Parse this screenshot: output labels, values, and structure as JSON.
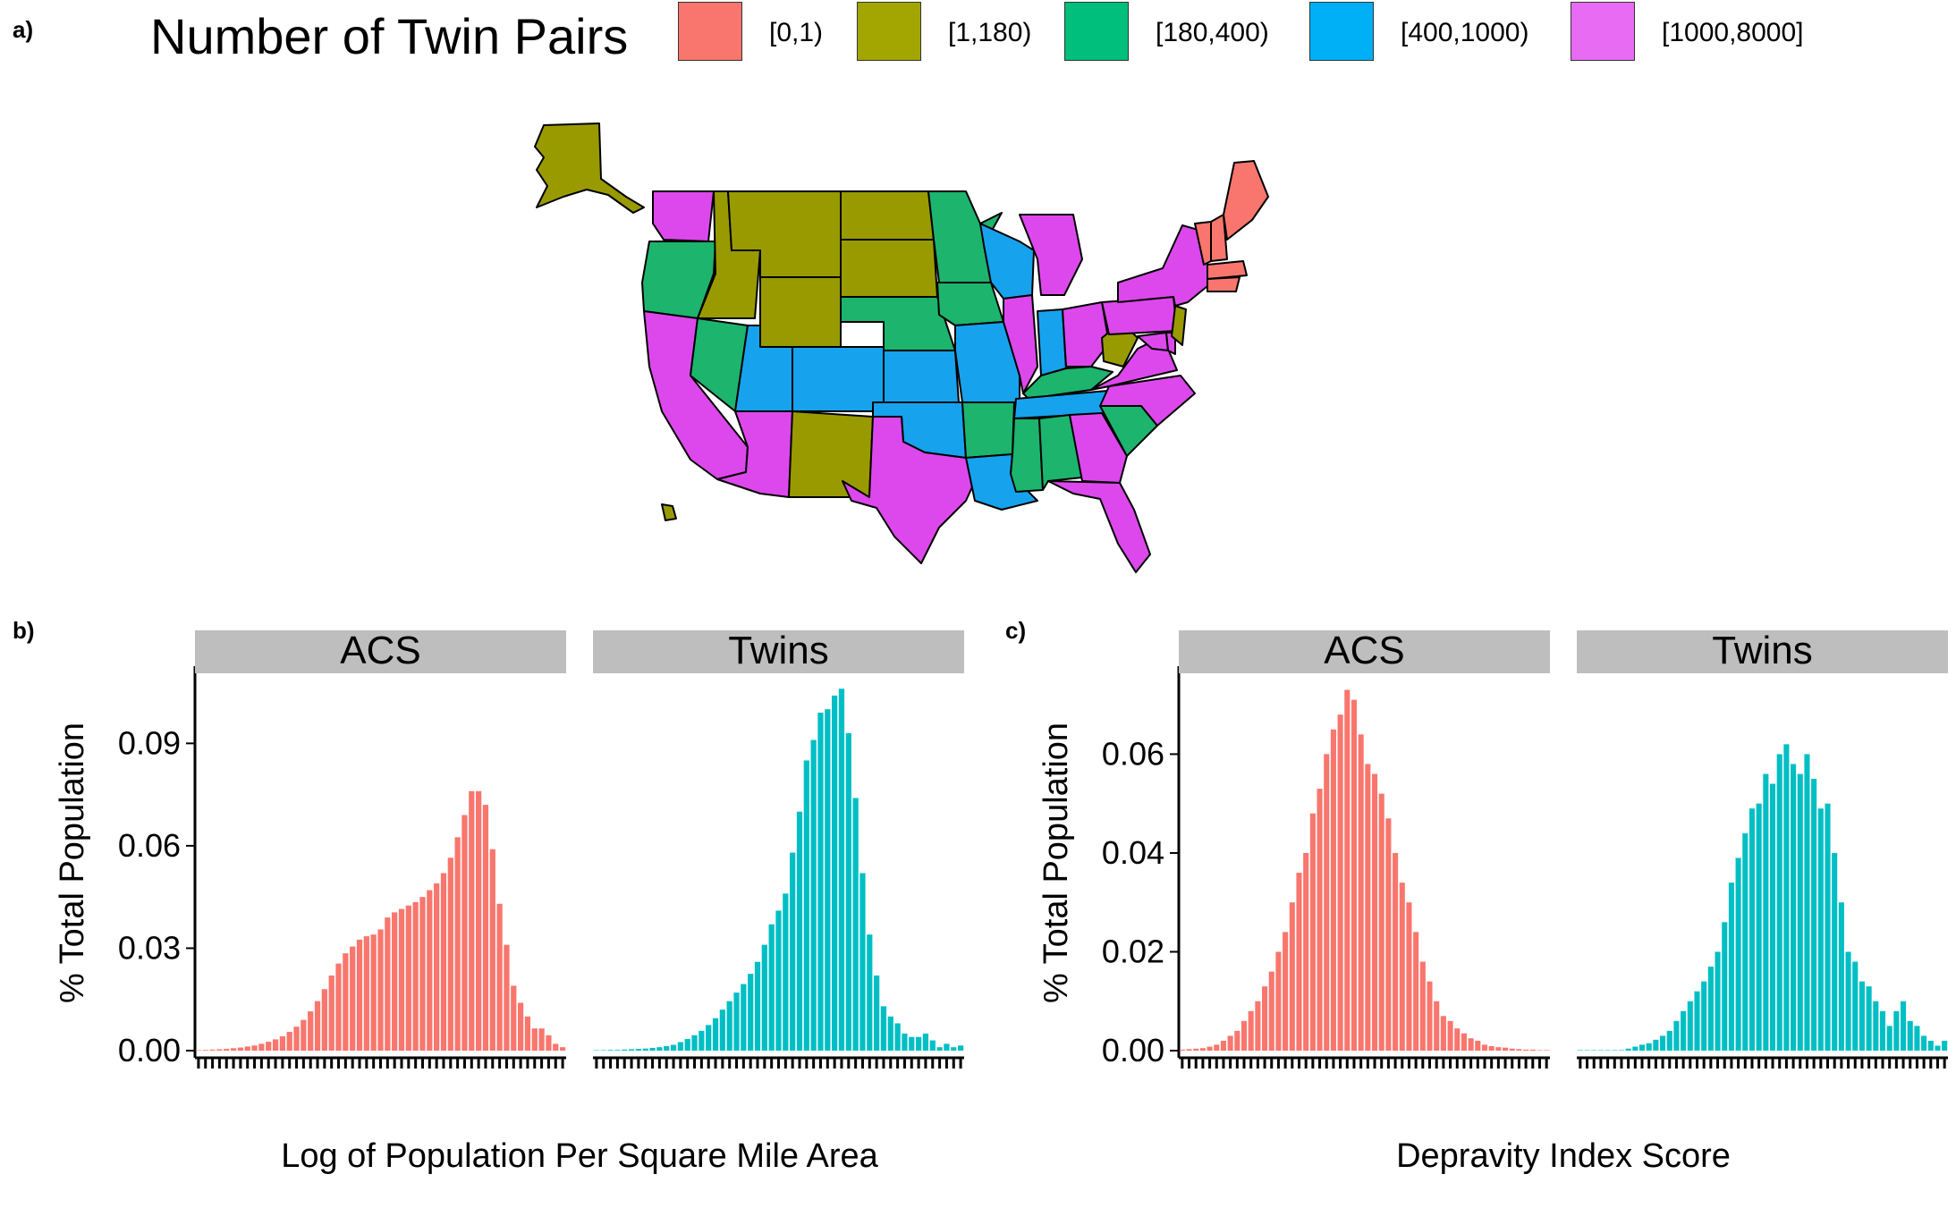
{
  "panels": {
    "a": "a)",
    "b": "b)",
    "c": "c)"
  },
  "legend": {
    "title": "Number of Twin Pairs",
    "items": [
      {
        "label": "[0,1)",
        "color": "#F8766D"
      },
      {
        "label": "[1,180)",
        "color": "#A3A500"
      },
      {
        "label": "[180,400)",
        "color": "#00BF7D"
      },
      {
        "label": "[400,1000)",
        "color": "#00B0F6"
      },
      {
        "label": "[1000,8000]",
        "color": "#E76BF3"
      }
    ]
  },
  "map_colors": {
    "bin0": "#F8766D",
    "bin1": "#999A00",
    "bin2": "#1DB46E",
    "bin3": "#17A2EE",
    "bin4": "#DD48EC"
  },
  "chart_data": [
    {
      "type": "bar",
      "panel": "b",
      "xlabel": "Log of Population Per Square Mile Area",
      "ylabel": "% Total Population",
      "ylim": [
        0,
        0.11
      ],
      "yticks": [
        "0.00",
        "0.03",
        "0.06",
        "0.09"
      ],
      "grid": false,
      "series": [
        {
          "name": "ACS",
          "color": "#F8766D",
          "values": [
            0.0001,
            0.0002,
            0.0003,
            0.0004,
            0.0005,
            0.0007,
            0.0009,
            0.0012,
            0.0015,
            0.002,
            0.0026,
            0.0033,
            0.0042,
            0.0055,
            0.007,
            0.009,
            0.0115,
            0.0145,
            0.018,
            0.022,
            0.0255,
            0.0285,
            0.0305,
            0.0325,
            0.0335,
            0.034,
            0.0355,
            0.039,
            0.0405,
            0.0415,
            0.0425,
            0.0435,
            0.045,
            0.047,
            0.049,
            0.052,
            0.0565,
            0.0625,
            0.069,
            0.076,
            0.076,
            0.072,
            0.059,
            0.043,
            0.031,
            0.019,
            0.014,
            0.01,
            0.0065,
            0.0065,
            0.0045,
            0.002,
            0.001
          ]
        },
        {
          "name": "Twins",
          "color": "#00BFC4",
          "values": [
            0.0001,
            0.0001,
            0.0002,
            0.0002,
            0.0003,
            0.0004,
            0.0005,
            0.0006,
            0.0008,
            0.001,
            0.0013,
            0.0017,
            0.0025,
            0.0034,
            0.0045,
            0.0058,
            0.0075,
            0.0095,
            0.012,
            0.0145,
            0.017,
            0.0195,
            0.0225,
            0.026,
            0.031,
            0.037,
            0.041,
            0.046,
            0.058,
            0.07,
            0.085,
            0.091,
            0.099,
            0.1,
            0.104,
            0.106,
            0.093,
            0.074,
            0.052,
            0.034,
            0.022,
            0.013,
            0.01,
            0.008,
            0.005,
            0.004,
            0.004,
            0.005,
            0.003,
            0.001,
            0.002,
            0.001,
            0.0015
          ]
        }
      ]
    },
    {
      "type": "bar",
      "panel": "c",
      "xlabel": "Depravity Index Score",
      "ylabel": "% Total Population",
      "ylim": [
        0,
        0.076
      ],
      "yticks": [
        "0.00",
        "0.02",
        "0.04",
        "0.06"
      ],
      "grid": false,
      "series": [
        {
          "name": "ACS",
          "color": "#F8766D",
          "values": [
            0.0002,
            0.0003,
            0.0004,
            0.0005,
            0.0008,
            0.0012,
            0.002,
            0.003,
            0.004,
            0.006,
            0.008,
            0.01,
            0.013,
            0.016,
            0.02,
            0.024,
            0.03,
            0.036,
            0.04,
            0.048,
            0.053,
            0.06,
            0.065,
            0.068,
            0.073,
            0.071,
            0.064,
            0.058,
            0.056,
            0.052,
            0.047,
            0.04,
            0.034,
            0.03,
            0.024,
            0.018,
            0.014,
            0.01,
            0.007,
            0.006,
            0.0045,
            0.0035,
            0.0025,
            0.002,
            0.0012,
            0.0009,
            0.0007,
            0.0006,
            0.0004,
            0.0003,
            0.0002,
            0.0002,
            0.0001,
            0.0001
          ]
        },
        {
          "name": "Twins",
          "color": "#00BFC4",
          "values": [
            0.0001,
            0.0,
            0.0,
            0.0,
            0.0,
            0.0,
            0.0001,
            0.0004,
            0.0008,
            0.0012,
            0.0015,
            0.0022,
            0.003,
            0.004,
            0.006,
            0.008,
            0.01,
            0.012,
            0.014,
            0.017,
            0.02,
            0.026,
            0.034,
            0.039,
            0.044,
            0.049,
            0.05,
            0.056,
            0.054,
            0.06,
            0.062,
            0.058,
            0.056,
            0.06,
            0.055,
            0.049,
            0.05,
            0.04,
            0.03,
            0.02,
            0.018,
            0.014,
            0.013,
            0.01,
            0.008,
            0.005,
            0.008,
            0.01,
            0.006,
            0.005,
            0.003,
            0.002,
            0.001,
            0.002
          ]
        }
      ]
    }
  ]
}
